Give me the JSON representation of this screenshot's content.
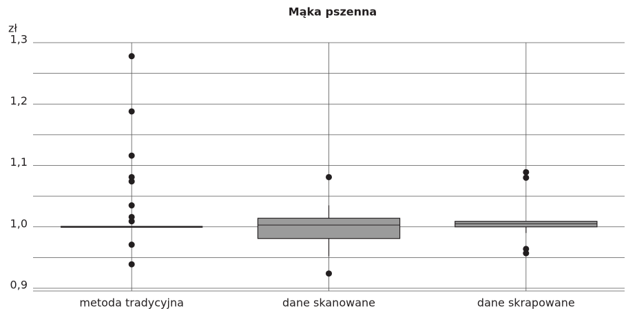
{
  "chart_data": {
    "type": "box",
    "title": "Mąka pszenna",
    "y_label": "zł",
    "categories": [
      "metoda tradycyjna",
      "dane skanowane",
      "dane skrapowane"
    ],
    "boxes": [
      {
        "q1": 1.0,
        "median": 1.0,
        "q3": 1.0,
        "whisker_low": 1.0,
        "whisker_high": 1.0,
        "outliers": [
          1.278,
          1.188,
          1.116,
          1.081,
          1.074,
          1.035,
          1.016,
          1.009,
          0.971,
          0.939
        ]
      },
      {
        "q1": 0.981,
        "median": 1.003,
        "q3": 1.014,
        "whisker_low": 0.952,
        "whisker_high": 1.035,
        "outliers": [
          1.081,
          0.924
        ]
      },
      {
        "q1": 1.0,
        "median": 1.005,
        "q3": 1.009,
        "whisker_low": 0.99,
        "whisker_high": 1.009,
        "outliers": [
          1.089,
          1.08,
          0.964,
          0.957
        ]
      }
    ],
    "color": "#9b9b9b",
    "ylim": [
      0.9,
      1.3
    ],
    "yticks": [
      {
        "value": 0.9,
        "label": "0,9"
      },
      {
        "value": 1.0,
        "label": "1,0"
      },
      {
        "value": 1.1,
        "label": "1,1"
      },
      {
        "value": 1.2,
        "label": "1,2"
      },
      {
        "value": 1.3,
        "label": "1,3"
      }
    ],
    "minor_yticks": [
      0.95,
      1.05,
      1.15,
      1.25
    ],
    "grid": true
  }
}
